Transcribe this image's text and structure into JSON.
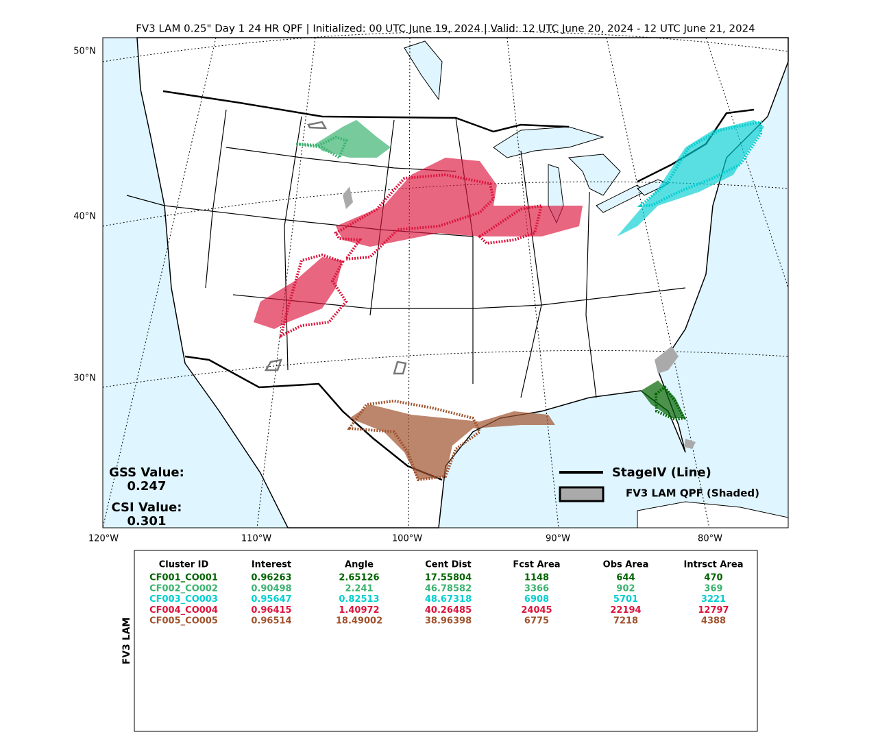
{
  "title": "FV3 LAM 0.25\" Day 1 24 HR QPF | Initialized: 00 UTC June 19, 2024 | Valid: 12 UTC June 20, 2024 - 12 UTC June 21, 2024",
  "map": {
    "lat_labels": [
      "50°N",
      "40°N",
      "30°N"
    ],
    "lon_labels": [
      "120°W",
      "110°W",
      "100°W",
      "90°W",
      "80°W"
    ],
    "scores": {
      "gss_label": "GSS Value:",
      "gss_value": 0.247,
      "csi_label": "CSI Value:",
      "csi_value": 0.301
    },
    "legend": {
      "line_label": "StageIV (Line)",
      "shaded_label": "FV3 LAM QPF (Shaded)"
    }
  },
  "table": {
    "row_group_label": "FV3 LAM",
    "header": [
      "Cluster ID",
      "Interest",
      "Angle",
      "Cent Dist",
      "Fcst Area",
      "Obs Area",
      "Intrsct Area"
    ],
    "rows": [
      {
        "color": "#006400",
        "cells": [
          "CF001_CO001",
          0.96263,
          2.65126,
          17.55804,
          1148,
          644,
          470
        ]
      },
      {
        "color": "#3cb371",
        "cells": [
          "CF002_CO002",
          0.90498,
          2.241,
          46.78582,
          3366,
          902,
          369
        ]
      },
      {
        "color": "#00ced1",
        "cells": [
          "CF003_CO003",
          0.95647,
          0.82513,
          48.67318,
          6908,
          5701,
          3221
        ]
      },
      {
        "color": "#dc143c",
        "cells": [
          "CF004_CO004",
          0.96415,
          1.40972,
          40.26485,
          24045,
          22194,
          12797
        ]
      },
      {
        "color": "#a0522d",
        "cells": [
          "CF005_CO005",
          0.96514,
          18.49002,
          38.96398,
          6775,
          7218,
          4388
        ]
      }
    ]
  }
}
